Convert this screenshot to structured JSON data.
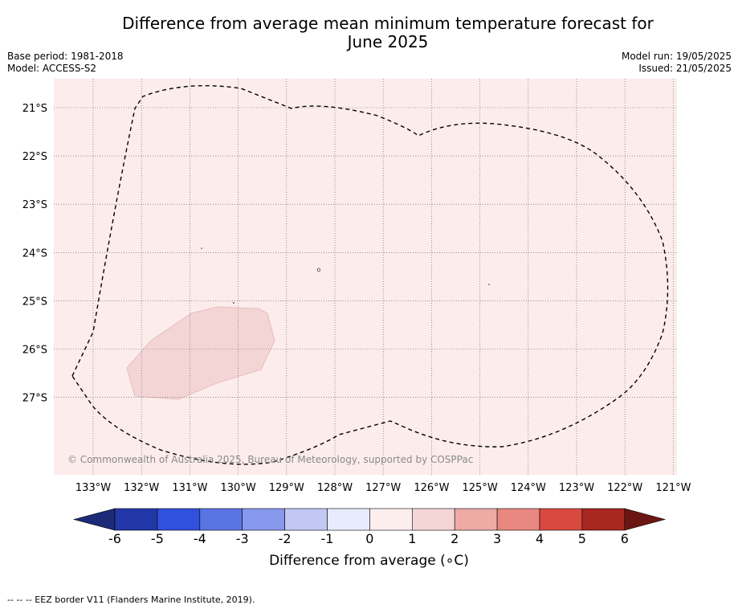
{
  "title_line1": "Difference from average mean minimum temperature forecast for",
  "title_line2": "June 2025",
  "meta": {
    "base_period": "Base period: 1981-2018",
    "model": "Model: ACCESS-S2",
    "model_run": "Model run: 19/05/2025",
    "issued": "Issued: 21/05/2025"
  },
  "copyright": "© Commonwealth of Australia 2025, Bureau of Meteorology, supported by COSPPac",
  "lon_ticks": [
    "133°W",
    "132°W",
    "131°W",
    "130°W",
    "129°W",
    "128°W",
    "127°W",
    "126°W",
    "125°W",
    "124°W",
    "123°W",
    "122°W",
    "121°W"
  ],
  "lat_ticks": [
    "21°S",
    "22°S",
    "23°S",
    "24°S",
    "25°S",
    "26°S",
    "27°S"
  ],
  "colorbar": {
    "label": "Difference from average (∘C)",
    "ticks": [
      "-6",
      "-5",
      "-4",
      "-3",
      "-2",
      "-1",
      "0",
      "1",
      "2",
      "3",
      "4",
      "5",
      "6"
    ],
    "colors": [
      "#2238a8",
      "#3150dd",
      "#5a74e4",
      "#8898ec",
      "#c1c8f4",
      "#e8ebfb",
      "#fdeeee",
      "#f5d6d6",
      "#eeaaa5",
      "#e88880",
      "#d9493e",
      "#a8271f"
    ],
    "under_color": "#1c2a77",
    "over_color": "#6b1612"
  },
  "map_colors": {
    "background": "#fcecec",
    "anomaly_patch": "#f4d5d5"
  },
  "attribution": "--  --  -- EEZ border V11 (Flanders Marine Institute, 2019)."
}
